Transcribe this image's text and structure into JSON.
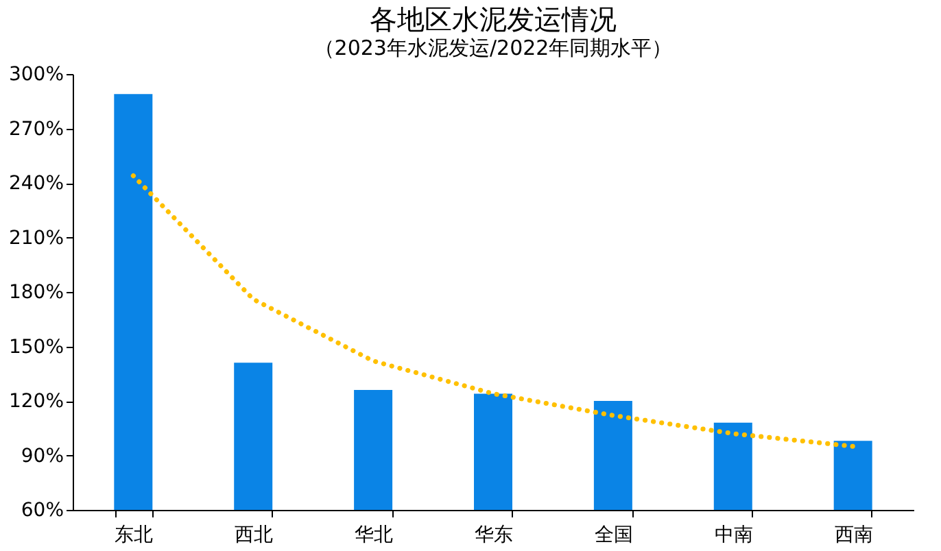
{
  "chart_data": {
    "type": "bar",
    "title": "各地区水泥发运情况",
    "subtitle": "（2023年水泥发运/2022年同期水平）",
    "categories": [
      "东北",
      "西北",
      "华北",
      "华东",
      "全国",
      "中南",
      "西南"
    ],
    "series": [
      {
        "color": "#0a84e6",
        "values": [
          289,
          141,
          126,
          124,
          120,
          108,
          98
        ]
      },
      {
        "type": "line",
        "color": "#ffc000",
        "line_style": "dotted",
        "marker": "none",
        "values": [
          244,
          176,
          142,
          124,
          112,
          102,
          95
        ]
      }
    ],
    "ylim": [
      60,
      300
    ],
    "yticks": [
      {
        "value": 60,
        "label": "60%"
      },
      {
        "value": 90,
        "label": "90%"
      },
      {
        "value": 120,
        "label": "120%"
      },
      {
        "value": 150,
        "label": "150%"
      },
      {
        "value": 180,
        "label": "180%"
      },
      {
        "value": 210,
        "label": "210%"
      },
      {
        "value": 240,
        "label": "240%"
      },
      {
        "value": 270,
        "label": "270%"
      },
      {
        "value": 300,
        "label": "300%"
      }
    ],
    "grid": false
  }
}
